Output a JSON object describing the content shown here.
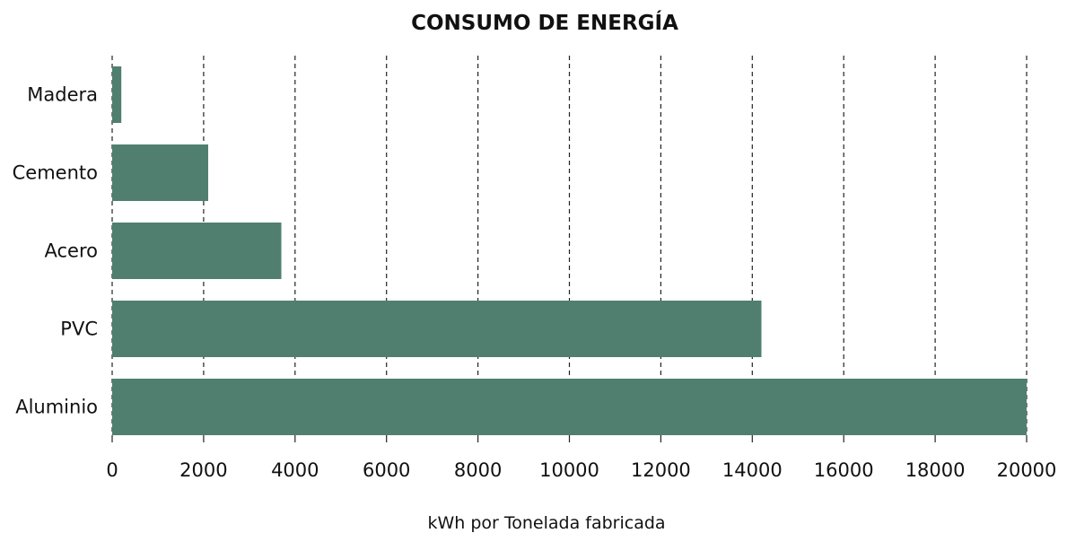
{
  "chart_data": {
    "type": "bar",
    "orientation": "horizontal",
    "title": "CONSUMO DE ENERGÍA",
    "xlabel": "kWh por Tonelada fabricada",
    "ylabel": "",
    "categories": [
      "Madera",
      "Cemento",
      "Acero",
      "PVC",
      "Aluminio"
    ],
    "values": [
      200,
      2100,
      3700,
      14200,
      20000
    ],
    "xlim": [
      0,
      20000
    ],
    "xticks": [
      0,
      2000,
      4000,
      6000,
      8000,
      10000,
      12000,
      14000,
      16000,
      18000,
      20000
    ],
    "grid": "vertical dashed",
    "legend": "none",
    "bar_color": "#507f70"
  }
}
